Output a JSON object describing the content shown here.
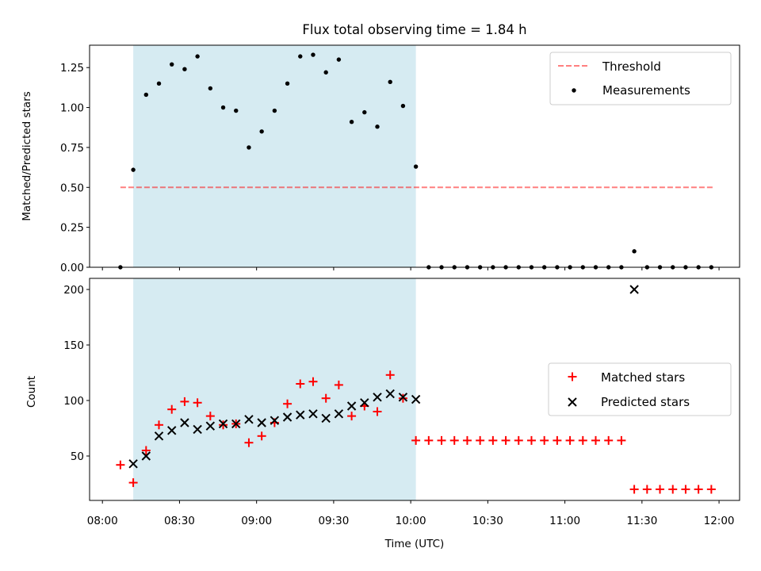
{
  "title": "Flux total observing time = 1.84 h",
  "colors": {
    "band": "#add8e6",
    "threshold": "#ff0000",
    "matched": "#ff0000",
    "predicted": "#000000",
    "measurement": "#000000"
  },
  "chart_data": [
    {
      "type": "scatter",
      "ylabel": "Matched/Predicted stars",
      "ylim": [
        0,
        1.39
      ],
      "yticks": [
        "0.00",
        "0.25",
        "0.50",
        "0.75",
        "1.00",
        "1.25"
      ],
      "xlim_minutes": [
        475,
        728
      ],
      "shaded_region": {
        "start": "08:12",
        "end": "10:02"
      },
      "threshold": {
        "value": 0.5,
        "start": "08:07",
        "end": "11:58"
      },
      "legend": {
        "position": "top-right",
        "entries": [
          "Threshold",
          "Measurements"
        ]
      },
      "series": [
        {
          "name": "Measurements",
          "x": [
            "08:07",
            "08:12",
            "08:17",
            "08:22",
            "08:27",
            "08:32",
            "08:37",
            "08:42",
            "08:47",
            "08:52",
            "08:57",
            "09:02",
            "09:07",
            "09:12",
            "09:17",
            "09:22",
            "09:27",
            "09:32",
            "09:37",
            "09:42",
            "09:47",
            "09:52",
            "09:57",
            "10:02",
            "10:07",
            "10:12",
            "10:17",
            "10:22",
            "10:27",
            "10:32",
            "10:37",
            "10:42",
            "10:47",
            "10:52",
            "10:57",
            "11:02",
            "11:07",
            "11:12",
            "11:17",
            "11:22",
            "11:27",
            "11:32",
            "11:37",
            "11:42",
            "11:47",
            "11:52",
            "11:57"
          ],
          "y": [
            0.0,
            0.61,
            1.08,
            1.15,
            1.27,
            1.24,
            1.32,
            1.12,
            1.0,
            0.98,
            0.75,
            0.85,
            0.98,
            1.15,
            1.32,
            1.33,
            1.22,
            1.3,
            0.91,
            0.97,
            0.88,
            1.16,
            1.01,
            0.63,
            0,
            0,
            0,
            0,
            0,
            0,
            0,
            0,
            0,
            0,
            0,
            0,
            0,
            0,
            0,
            0,
            0.1,
            0,
            0,
            0,
            0,
            0,
            0
          ]
        }
      ]
    },
    {
      "type": "scatter",
      "ylabel": "Count",
      "xlabel": "Time (UTC)",
      "ylim": [
        10,
        210
      ],
      "yticks": [
        "50",
        "100",
        "150",
        "200"
      ],
      "xticks": [
        "08:00",
        "08:30",
        "09:00",
        "09:30",
        "10:00",
        "10:30",
        "11:00",
        "11:30",
        "12:00"
      ],
      "xlim_minutes": [
        475,
        728
      ],
      "shaded_region": {
        "start": "08:12",
        "end": "10:02"
      },
      "legend": {
        "position": "center-right",
        "entries": [
          "Matched stars",
          "Predicted stars"
        ]
      },
      "series": [
        {
          "name": "Matched stars",
          "x": [
            "08:07",
            "08:12",
            "08:17",
            "08:22",
            "08:27",
            "08:32",
            "08:37",
            "08:42",
            "08:47",
            "08:52",
            "08:57",
            "09:02",
            "09:07",
            "09:12",
            "09:17",
            "09:22",
            "09:27",
            "09:32",
            "09:37",
            "09:42",
            "09:47",
            "09:52",
            "09:57",
            "10:02",
            "10:07",
            "10:12",
            "10:17",
            "10:22",
            "10:27",
            "10:32",
            "10:37",
            "10:42",
            "10:47",
            "10:52",
            "10:57",
            "11:02",
            "11:07",
            "11:12",
            "11:17",
            "11:22",
            "11:27",
            "11:32",
            "11:37",
            "11:42",
            "11:47",
            "11:52",
            "11:57"
          ],
          "y": [
            42,
            26,
            55,
            78,
            92,
            99,
            98,
            86,
            78,
            79,
            62,
            68,
            80,
            97,
            115,
            117,
            102,
            114,
            86,
            95,
            90,
            123,
            102,
            64,
            64,
            64,
            64,
            64,
            64,
            64,
            64,
            64,
            64,
            64,
            64,
            64,
            64,
            64,
            64,
            64,
            20,
            20,
            20,
            20,
            20,
            20,
            20
          ]
        },
        {
          "name": "Predicted stars",
          "x": [
            "08:12",
            "08:17",
            "08:22",
            "08:27",
            "08:32",
            "08:37",
            "08:42",
            "08:47",
            "08:52",
            "08:57",
            "09:02",
            "09:07",
            "09:12",
            "09:17",
            "09:22",
            "09:27",
            "09:32",
            "09:37",
            "09:42",
            "09:47",
            "09:52",
            "09:57",
            "10:02",
            "11:27"
          ],
          "y": [
            43,
            50,
            68,
            73,
            80,
            74,
            77,
            79,
            79,
            83,
            80,
            82,
            85,
            87,
            88,
            84,
            88,
            95,
            98,
            103,
            106,
            103,
            101,
            200
          ]
        }
      ]
    }
  ]
}
